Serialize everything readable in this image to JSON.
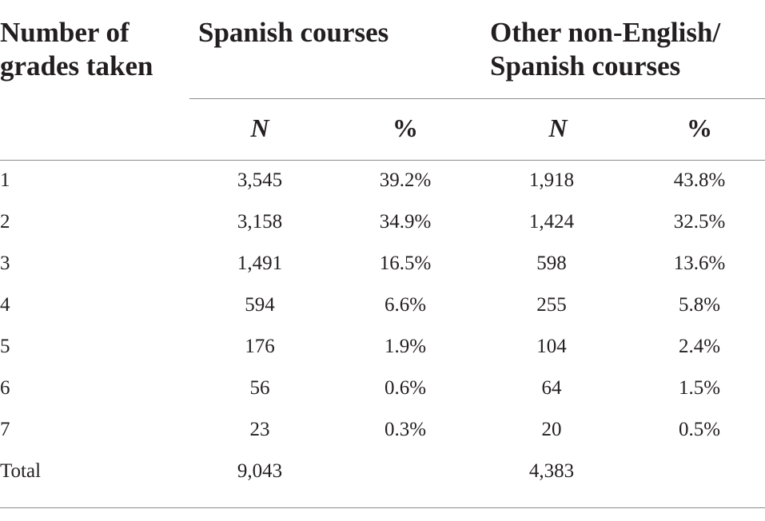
{
  "headers": {
    "row_label": [
      "Number of",
      "grades taken"
    ],
    "group1": "Spanish courses",
    "group2": [
      "Other non-English/",
      "Spanish courses"
    ],
    "n": "N",
    "pct": "%"
  },
  "rows": [
    {
      "label": "1",
      "sp_n": "3,545",
      "sp_pct": "39.2%",
      "ot_n": "1,918",
      "ot_pct": "43.8%"
    },
    {
      "label": "2",
      "sp_n": "3,158",
      "sp_pct": "34.9%",
      "ot_n": "1,424",
      "ot_pct": "32.5%"
    },
    {
      "label": "3",
      "sp_n": "1,491",
      "sp_pct": "16.5%",
      "ot_n": "598",
      "ot_pct": "13.6%"
    },
    {
      "label": "4",
      "sp_n": "594",
      "sp_pct": "6.6%",
      "ot_n": "255",
      "ot_pct": "5.8%"
    },
    {
      "label": "5",
      "sp_n": "176",
      "sp_pct": "1.9%",
      "ot_n": "104",
      "ot_pct": "2.4%"
    },
    {
      "label": "6",
      "sp_n": "56",
      "sp_pct": "0.6%",
      "ot_n": "64",
      "ot_pct": "1.5%"
    },
    {
      "label": "7",
      "sp_n": "23",
      "sp_pct": "0.3%",
      "ot_n": "20",
      "ot_pct": "0.5%"
    },
    {
      "label": "Total",
      "sp_n": "9,043",
      "sp_pct": "",
      "ot_n": "4,383",
      "ot_pct": ""
    }
  ]
}
